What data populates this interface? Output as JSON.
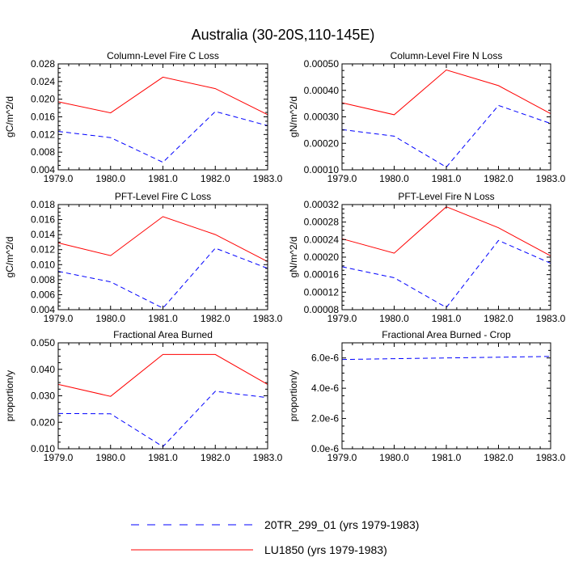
{
  "figure": {
    "title": "Australia (30-20S,110-145E)",
    "legend": [
      {
        "label": "20TR_299_01 (yrs 1979-1983)",
        "color": "#0000ff",
        "dash": true
      },
      {
        "label": "LU1850 (yrs 1979-1983)",
        "color": "#ff0000",
        "dash": false
      }
    ]
  },
  "chart_data": [
    {
      "type": "line",
      "title": "Column-Level Fire C Loss",
      "ylabel": "gC/m^2/d",
      "x": [
        1979,
        1980,
        1981,
        1982,
        1983
      ],
      "xticklabels": [
        "1979.0",
        "1980.0",
        "1981.0",
        "1982.0",
        "1983.0"
      ],
      "ylim": [
        0.004,
        0.028
      ],
      "yticks": [
        0.004,
        0.008,
        0.012,
        0.016,
        0.02,
        0.024,
        0.028
      ],
      "yticklabels": [
        "0.004",
        "0.008",
        "0.012",
        "0.016",
        "0.020",
        "0.024",
        "0.028"
      ],
      "series": [
        {
          "name": "20TR_299_01 (yrs 1979-1983)",
          "color": "#0000ff",
          "dash": true,
          "values": [
            0.0127,
            0.0113,
            0.0057,
            0.0172,
            0.014
          ]
        },
        {
          "name": "LU1850 (yrs 1979-1983)",
          "color": "#ff0000",
          "dash": false,
          "values": [
            0.0194,
            0.0169,
            0.025,
            0.0224,
            0.0165
          ]
        }
      ]
    },
    {
      "type": "line",
      "title": "Column-Level Fire N Loss",
      "ylabel": "gN/m^2/d",
      "x": [
        1979,
        1980,
        1981,
        1982,
        1983
      ],
      "xticklabels": [
        "1979.0",
        "1980.0",
        "1981.0",
        "1982.0",
        "1983.0"
      ],
      "ylim": [
        0.0001,
        0.0005
      ],
      "yticks": [
        0.0001,
        0.0002,
        0.0003,
        0.0004,
        0.0005
      ],
      "yticklabels": [
        "0.00010",
        "0.00020",
        "0.00030",
        "0.00040",
        "0.00050"
      ],
      "series": [
        {
          "name": "20TR_299_01 (yrs 1979-1983)",
          "color": "#0000ff",
          "dash": true,
          "values": [
            0.000252,
            0.000227,
            0.00011,
            0.000343,
            0.000275
          ]
        },
        {
          "name": "LU1850 (yrs 1979-1983)",
          "color": "#ff0000",
          "dash": false,
          "values": [
            0.000353,
            0.000308,
            0.000477,
            0.000418,
            0.000312
          ]
        }
      ]
    },
    {
      "type": "line",
      "title": "PFT-Level Fire C Loss",
      "ylabel": "gC/m^2/d",
      "x": [
        1979,
        1980,
        1981,
        1982,
        1983
      ],
      "xticklabels": [
        "1979.0",
        "1980.0",
        "1981.0",
        "1982.0",
        "1983.0"
      ],
      "ylim": [
        0.004,
        0.018
      ],
      "yticks": [
        0.004,
        0.006,
        0.008,
        0.01,
        0.012,
        0.014,
        0.016,
        0.018
      ],
      "yticklabels": [
        "0.004",
        "0.006",
        "0.008",
        "0.010",
        "0.012",
        "0.014",
        "0.016",
        "0.018"
      ],
      "series": [
        {
          "name": "20TR_299_01 (yrs 1979-1983)",
          "color": "#0000ff",
          "dash": true,
          "values": [
            0.0091,
            0.0077,
            0.0042,
            0.0122,
            0.0095
          ]
        },
        {
          "name": "LU1850 (yrs 1979-1983)",
          "color": "#ff0000",
          "dash": false,
          "values": [
            0.0129,
            0.0112,
            0.0164,
            0.014,
            0.0104
          ]
        }
      ]
    },
    {
      "type": "line",
      "title": "PFT-Level Fire N Loss",
      "ylabel": "gN/m^2/d",
      "x": [
        1979,
        1980,
        1981,
        1982,
        1983
      ],
      "xticklabels": [
        "1979.0",
        "1980.0",
        "1981.0",
        "1982.0",
        "1983.0"
      ],
      "ylim": [
        8e-05,
        0.00032
      ],
      "yticks": [
        8e-05,
        0.00012,
        0.00016,
        0.0002,
        0.00024,
        0.00028,
        0.00032
      ],
      "yticklabels": [
        "0.00008",
        "0.00012",
        "0.00016",
        "0.00020",
        "0.00024",
        "0.00028",
        "0.00032"
      ],
      "series": [
        {
          "name": "20TR_299_01 (yrs 1979-1983)",
          "color": "#0000ff",
          "dash": true,
          "values": [
            0.000178,
            0.000153,
            8.5e-05,
            0.000238,
            0.000186
          ]
        },
        {
          "name": "LU1850 (yrs 1979-1983)",
          "color": "#ff0000",
          "dash": false,
          "values": [
            0.000242,
            0.000209,
            0.000315,
            0.000267,
            0.000203
          ]
        }
      ]
    },
    {
      "type": "line",
      "title": "Fractional Area Burned",
      "ylabel": "proportion/y",
      "x": [
        1979,
        1980,
        1981,
        1982,
        1983
      ],
      "xticklabels": [
        "1979.0",
        "1980.0",
        "1981.0",
        "1982.0",
        "1983.0"
      ],
      "ylim": [
        0.01,
        0.05
      ],
      "yticks": [
        0.01,
        0.02,
        0.03,
        0.04,
        0.05
      ],
      "yticklabels": [
        "0.010",
        "0.020",
        "0.030",
        "0.040",
        "0.050"
      ],
      "series": [
        {
          "name": "20TR_299_01 (yrs 1979-1983)",
          "color": "#0000ff",
          "dash": true,
          "values": [
            0.0233,
            0.0232,
            0.0108,
            0.0317,
            0.0293
          ]
        },
        {
          "name": "LU1850 (yrs 1979-1983)",
          "color": "#ff0000",
          "dash": false,
          "values": [
            0.0343,
            0.0298,
            0.0456,
            0.0456,
            0.0343
          ]
        }
      ]
    },
    {
      "type": "line",
      "title": "Fractional Area Burned - Crop",
      "ylabel": "proportion/y",
      "x": [
        1979,
        1980,
        1981,
        1982,
        1983
      ],
      "xticklabels": [
        "1979.0",
        "1980.0",
        "1981.0",
        "1982.0",
        "1983.0"
      ],
      "ylim": [
        0,
        7e-06
      ],
      "yticks": [
        0,
        2e-06,
        4e-06,
        6e-06
      ],
      "yticklabels": [
        "0.0e-6",
        "2.0e-6",
        "4.0e-6",
        "6.0e-6"
      ],
      "series": [
        {
          "name": "20TR_299_01 (yrs 1979-1983)",
          "color": "#0000ff",
          "dash": true,
          "values": [
            5.9e-06,
            5.95e-06,
            6e-06,
            6.05e-06,
            6.1e-06
          ]
        },
        {
          "name": "LU1850 (yrs 1979-1983)",
          "color": "#ff0000",
          "dash": false,
          "values": [
            0,
            0,
            0,
            0,
            0
          ]
        }
      ]
    }
  ]
}
